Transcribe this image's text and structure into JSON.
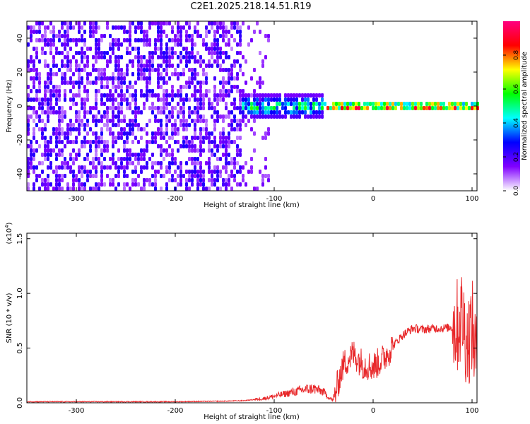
{
  "title": "C2E1.2025.218.14.51.R19",
  "chart_data": [
    {
      "type": "heatmap",
      "xlabel": "Height of straight line (km)",
      "ylabel": "Frequency (Hz)",
      "xlim": [
        -350,
        105
      ],
      "ylim": [
        -50,
        50
      ],
      "xticks": [
        -300,
        -200,
        -100,
        0,
        100
      ],
      "yticks": [
        -40,
        -20,
        0,
        20,
        40
      ],
      "colorbar": {
        "label": "Normalized spectral amplitude",
        "range": [
          0.0,
          1.0
        ],
        "ticks": [
          "0.0",
          "0.2",
          "0.4",
          "0.6",
          "0.8"
        ],
        "colormap": [
          "#ffffff",
          "#8000ff",
          "#0000ff",
          "#00ffff",
          "#00ff00",
          "#ffff00",
          "#ff0000",
          "#ff0080"
        ]
      },
      "series": [
        {
          "x_range": [
            -350,
            -135
          ],
          "center_hz": 0,
          "spread_hz": 50,
          "amplitude": 0.2
        },
        {
          "x_range": [
            -135,
            -50
          ],
          "center_hz": 1,
          "spread_hz": 7,
          "amplitude": 0.45
        },
        {
          "x_range": [
            -50,
            105
          ],
          "center_hz": 1,
          "spread_hz": 3,
          "amplitude": 0.85
        }
      ]
    },
    {
      "type": "line",
      "xlabel": "Height of straight line (km)",
      "ylabel": "SNR (10 * v/v)",
      "y_multiplier": "(x10",
      "y_multiplier_exp": "4",
      "y_multiplier_close": ")",
      "xlim": [
        -350,
        105
      ],
      "ylim": [
        0.0,
        1.55
      ],
      "xticks": [
        -300,
        -200,
        -100,
        0,
        100
      ],
      "yticks": [
        "0.0",
        "0.5",
        "1.0",
        "1.5"
      ],
      "color": "#e8282a",
      "x": [
        -350,
        -300,
        -200,
        -150,
        -130,
        -110,
        -90,
        -70,
        -60,
        -50,
        -45,
        -40,
        -35,
        -30,
        -20,
        -10,
        0,
        10,
        20,
        30,
        40,
        50,
        60,
        70,
        80,
        85,
        90,
        95,
        100,
        105
      ],
      "y": [
        0.01,
        0.01,
        0.01,
        0.015,
        0.02,
        0.04,
        0.08,
        0.12,
        0.13,
        0.1,
        0.05,
        0.02,
        0.2,
        0.35,
        0.45,
        0.35,
        0.33,
        0.4,
        0.52,
        0.62,
        0.68,
        0.67,
        0.68,
        0.68,
        0.69,
        0.7,
        0.8,
        0.55,
        0.7,
        0.35
      ]
    }
  ]
}
